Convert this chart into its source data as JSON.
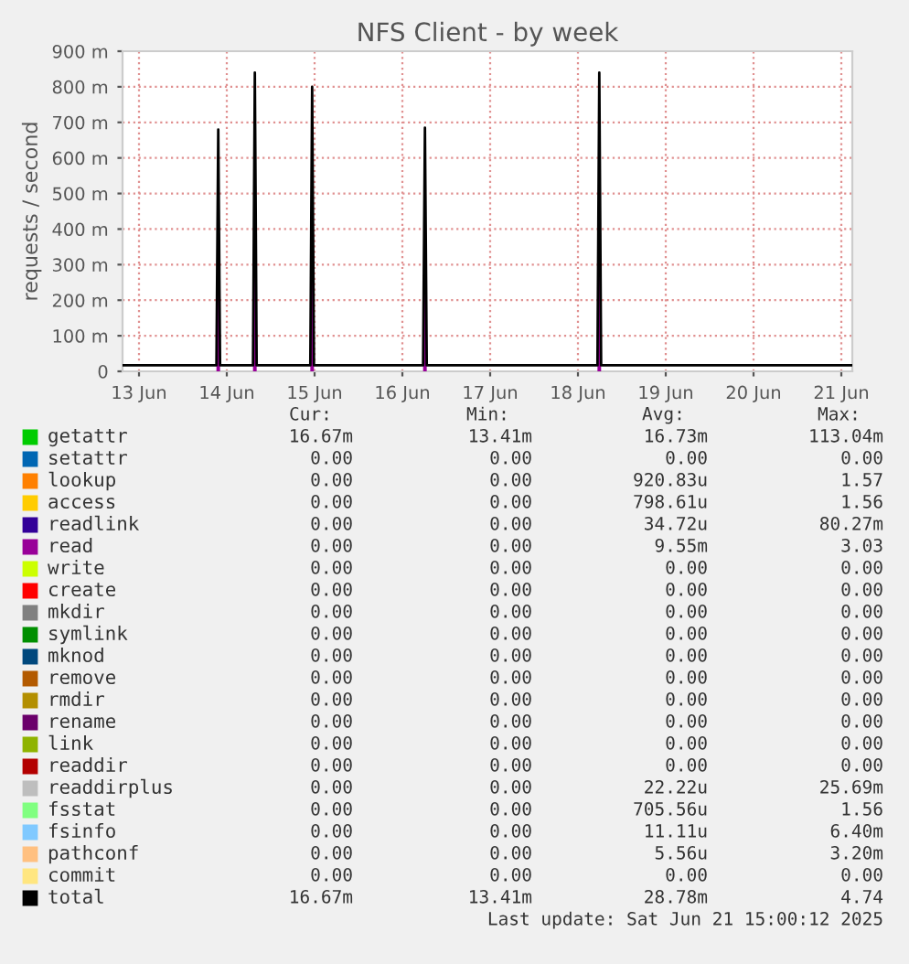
{
  "chart_data": {
    "type": "line",
    "title": "NFS Client - by week",
    "ylabel": "requests / second",
    "x": [
      "2025-06-12T19:30",
      "2025-06-13T21:10",
      "2025-06-13T21:40",
      "2025-06-13T22:10",
      "2025-06-14T07:10",
      "2025-06-14T07:40",
      "2025-06-14T08:10",
      "2025-06-14T22:50",
      "2025-06-14T23:20",
      "2025-06-14T23:50",
      "2025-06-16T05:40",
      "2025-06-16T06:10",
      "2025-06-16T06:40",
      "2025-06-18T05:20",
      "2025-06-18T05:50",
      "2025-06-18T06:20",
      "2025-06-21T03:00"
    ],
    "series": [
      {
        "name": "getattr",
        "color": "#00cc00",
        "values": [
          null,
          null,
          null,
          null,
          null,
          null,
          null,
          null,
          null,
          null,
          null,
          null,
          null,
          null,
          null,
          null,
          null
        ]
      },
      {
        "name": "setattr",
        "color": "#0066b3",
        "values": [
          null,
          null,
          null,
          null,
          null,
          null,
          null,
          null,
          null,
          null,
          null,
          null,
          null,
          null,
          null,
          null,
          null
        ]
      },
      {
        "name": "lookup",
        "color": "#ff8000",
        "values": [
          null,
          null,
          null,
          null,
          null,
          null,
          null,
          null,
          null,
          null,
          null,
          null,
          null,
          null,
          null,
          null,
          null
        ]
      },
      {
        "name": "access",
        "color": "#ffcc00",
        "values": [
          null,
          null,
          null,
          null,
          null,
          null,
          null,
          null,
          null,
          null,
          null,
          null,
          null,
          null,
          null,
          null,
          null
        ]
      },
      {
        "name": "readlink",
        "color": "#330099",
        "values": [
          null,
          null,
          null,
          null,
          null,
          null,
          null,
          null,
          null,
          null,
          null,
          null,
          null,
          null,
          null,
          null,
          null
        ]
      },
      {
        "name": "read",
        "color": "#990099",
        "type": "area",
        "values": [
          0,
          0,
          650,
          0,
          0,
          810,
          0,
          0,
          770,
          0,
          0,
          660,
          0,
          0,
          810,
          0,
          0
        ]
      },
      {
        "name": "write",
        "color": "#ccff00",
        "values": [
          null,
          null,
          null,
          null,
          null,
          null,
          null,
          null,
          null,
          null,
          null,
          null,
          null,
          null,
          null,
          null,
          null
        ]
      },
      {
        "name": "create",
        "color": "#ff0000",
        "values": [
          null,
          null,
          null,
          null,
          null,
          null,
          null,
          null,
          null,
          null,
          null,
          null,
          null,
          null,
          null,
          null,
          null
        ]
      },
      {
        "name": "mkdir",
        "color": "#808080",
        "values": [
          null,
          null,
          null,
          null,
          null,
          null,
          null,
          null,
          null,
          null,
          null,
          null,
          null,
          null,
          null,
          null,
          null
        ]
      },
      {
        "name": "symlink",
        "color": "#008f00",
        "values": [
          null,
          null,
          null,
          null,
          null,
          null,
          null,
          null,
          null,
          null,
          null,
          null,
          null,
          null,
          null,
          null,
          null
        ]
      },
      {
        "name": "mknod",
        "color": "#00487d",
        "values": [
          null,
          null,
          null,
          null,
          null,
          null,
          null,
          null,
          null,
          null,
          null,
          null,
          null,
          null,
          null,
          null,
          null
        ]
      },
      {
        "name": "remove",
        "color": "#b35a00",
        "values": [
          null,
          null,
          null,
          null,
          null,
          null,
          null,
          null,
          null,
          null,
          null,
          null,
          null,
          null,
          null,
          null,
          null
        ]
      },
      {
        "name": "rmdir",
        "color": "#b38f00",
        "values": [
          null,
          null,
          null,
          null,
          null,
          null,
          null,
          null,
          null,
          null,
          null,
          null,
          null,
          null,
          null,
          null,
          null
        ]
      },
      {
        "name": "rename",
        "color": "#6b006b",
        "values": [
          null,
          null,
          null,
          null,
          null,
          null,
          null,
          null,
          null,
          null,
          null,
          null,
          null,
          null,
          null,
          null,
          null
        ]
      },
      {
        "name": "link",
        "color": "#8fb300",
        "values": [
          null,
          null,
          null,
          null,
          null,
          null,
          null,
          null,
          null,
          null,
          null,
          null,
          null,
          null,
          null,
          null,
          null
        ]
      },
      {
        "name": "readdir",
        "color": "#b30000",
        "values": [
          null,
          null,
          null,
          null,
          null,
          null,
          null,
          null,
          null,
          null,
          null,
          null,
          null,
          null,
          null,
          null,
          null
        ]
      },
      {
        "name": "readdirplus",
        "color": "#bebebe",
        "values": [
          null,
          null,
          null,
          null,
          null,
          null,
          null,
          null,
          null,
          null,
          null,
          null,
          null,
          null,
          null,
          null,
          null
        ]
      },
      {
        "name": "fsstat",
        "color": "#80ff80",
        "values": [
          null,
          null,
          null,
          null,
          null,
          null,
          null,
          null,
          null,
          null,
          null,
          null,
          null,
          null,
          null,
          null,
          null
        ]
      },
      {
        "name": "fsinfo",
        "color": "#80c9ff",
        "values": [
          null,
          null,
          null,
          null,
          null,
          null,
          null,
          null,
          null,
          null,
          null,
          null,
          null,
          null,
          null,
          null,
          null
        ]
      },
      {
        "name": "pathconf",
        "color": "#ffc080",
        "values": [
          null,
          null,
          null,
          null,
          null,
          null,
          null,
          null,
          null,
          null,
          null,
          null,
          null,
          null,
          null,
          null,
          null
        ]
      },
      {
        "name": "commit",
        "color": "#ffe680",
        "values": [
          null,
          null,
          null,
          null,
          null,
          null,
          null,
          null,
          null,
          null,
          null,
          null,
          null,
          null,
          null,
          null,
          null
        ]
      },
      {
        "name": "total",
        "color": "#000000",
        "values": [
          17,
          17,
          680,
          17,
          17,
          840,
          17,
          17,
          800,
          17,
          17,
          685,
          17,
          17,
          840,
          17,
          17
        ]
      }
    ],
    "xlim": [
      "2025-06-12T19:30",
      "2025-06-21T03:00"
    ],
    "xticks": [
      {
        "value": "2025-06-13",
        "label": "13 Jun"
      },
      {
        "value": "2025-06-14",
        "label": "14 Jun"
      },
      {
        "value": "2025-06-15",
        "label": "15 Jun"
      },
      {
        "value": "2025-06-16",
        "label": "16 Jun"
      },
      {
        "value": "2025-06-17",
        "label": "17 Jun"
      },
      {
        "value": "2025-06-18",
        "label": "18 Jun"
      },
      {
        "value": "2025-06-19",
        "label": "19 Jun"
      },
      {
        "value": "2025-06-20",
        "label": "20 Jun"
      },
      {
        "value": "2025-06-21",
        "label": "21 Jun"
      }
    ],
    "ylim": [
      0,
      900
    ],
    "yticks": [
      0,
      {
        "value": 100,
        "label": "100 m"
      },
      {
        "value": 200,
        "label": "200 m"
      },
      {
        "value": 300,
        "label": "300 m"
      },
      {
        "value": 400,
        "label": "400 m"
      },
      {
        "value": 500,
        "label": "500 m"
      },
      {
        "value": 600,
        "label": "600 m"
      },
      {
        "value": 700,
        "label": "700 m"
      },
      {
        "value": 800,
        "label": "800 m"
      },
      {
        "value": 900,
        "label": "900 m"
      }
    ],
    "grid": true,
    "legend": "bottom",
    "annotations": [
      "Cur:",
      "Min:",
      "Avg:",
      "Max:",
      "16.67m",
      "13.41m",
      "16.73m",
      "113.04m",
      "0.00",
      "0.00",
      "0.00",
      "0.00",
      "0.00",
      "0.00",
      "920.83u",
      "1.57",
      "0.00",
      "0.00",
      "798.61u",
      "1.56",
      "0.00",
      "0.00",
      "34.72u",
      "80.27m",
      "0.00",
      "0.00",
      "9.55m",
      "3.03",
      "0.00",
      "0.00",
      "0.00",
      "0.00",
      "0.00",
      "0.00",
      "0.00",
      "0.00",
      "0.00",
      "0.00",
      "0.00",
      "0.00",
      "0.00",
      "0.00",
      "0.00",
      "0.00",
      "0.00",
      "0.00",
      "0.00",
      "0.00",
      "0.00",
      "0.00",
      "0.00",
      "0.00",
      "0.00",
      "0.00",
      "0.00",
      "0.00",
      "0.00",
      "0.00",
      "0.00",
      "0.00",
      "0.00",
      "0.00",
      "0.00",
      "0.00",
      "0.00",
      "0.00",
      "0.00",
      "0.00",
      "0.00",
      "0.00",
      "22.22u",
      "25.69m",
      "0.00",
      "0.00",
      "705.56u",
      "1.56",
      "0.00",
      "0.00",
      "11.11u",
      "6.40m",
      "0.00",
      "0.00",
      "5.56u",
      "3.20m",
      "0.00",
      "0.00",
      "0.00",
      "0.00",
      "16.67m",
      "13.41m",
      "28.78m",
      "4.74",
      "Last update: Sat Jun 21 15:00:12 2025"
    ]
  }
}
